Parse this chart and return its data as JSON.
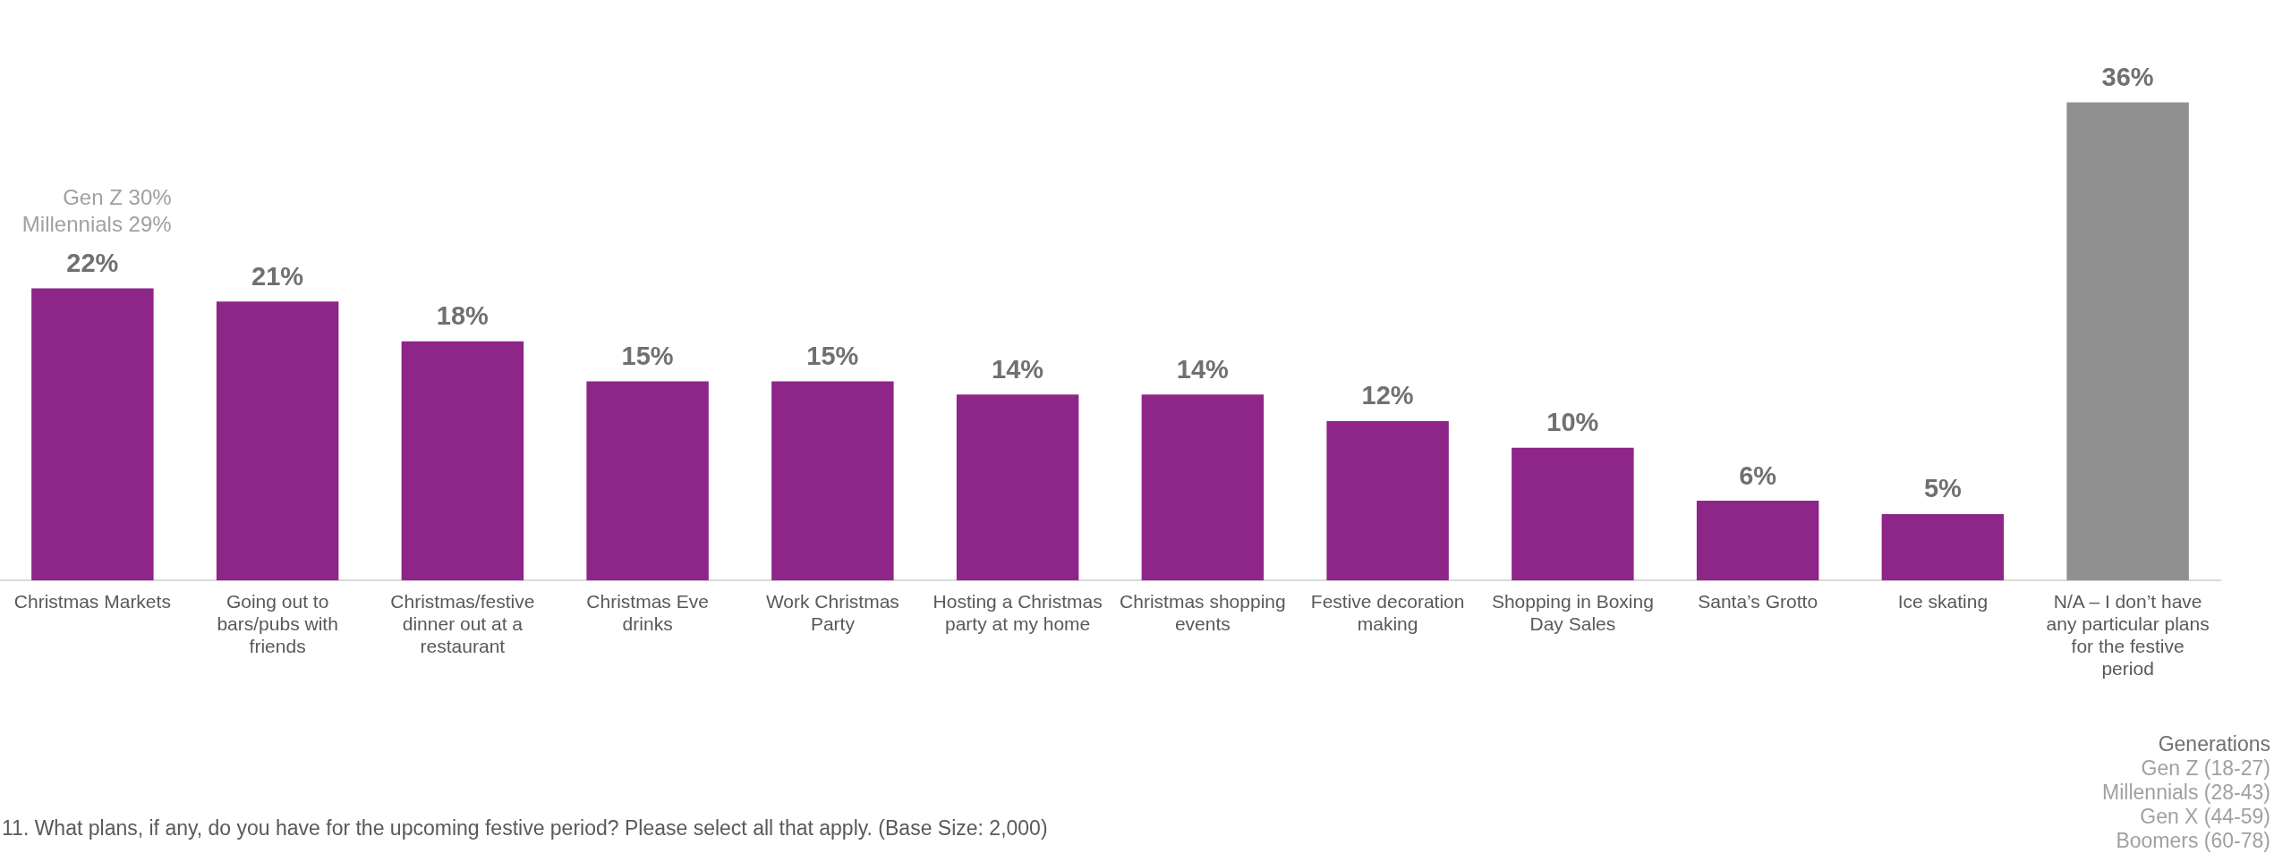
{
  "chart_data": {
    "type": "bar",
    "categories": [
      "Christmas Markets",
      "Going out to bars/pubs with friends",
      "Christmas/festive dinner out at a restaurant",
      "Christmas Eve drinks",
      "Work Christmas Party",
      "Hosting a Christmas party at my home",
      "Christmas shopping events",
      "Festive decoration making",
      "Shopping in Boxing Day Sales",
      "Santa’s Grotto",
      "Ice skating",
      "N/A – I don’t have any particular plans for the festive period"
    ],
    "values": [
      22,
      21,
      18,
      15,
      15,
      14,
      14,
      12,
      10,
      6,
      5,
      36
    ],
    "colors": [
      "#8e2589",
      "#8e2589",
      "#8e2589",
      "#8e2589",
      "#8e2589",
      "#8e2589",
      "#8e2589",
      "#8e2589",
      "#8e2589",
      "#8e2589",
      "#8e2589",
      "#909090"
    ],
    "value_labels": [
      "22%",
      "21%",
      "18%",
      "15%",
      "15%",
      "14%",
      "14%",
      "12%",
      "10%",
      "6%",
      "5%",
      "36%"
    ],
    "legend_title": "Generations",
    "annotations": [
      "Gen Z 30%\nMillennials 29%",
      "Gen Z (18-27)\nMillennials (28-43)\nGen X (44-59)\nBoomers (60-78)",
      "11. What plans, if any, do you have for the upcoming festive period? Please select all that apply. (Base Size: 2,000)"
    ],
    "grid": false,
    "legend": false
  }
}
